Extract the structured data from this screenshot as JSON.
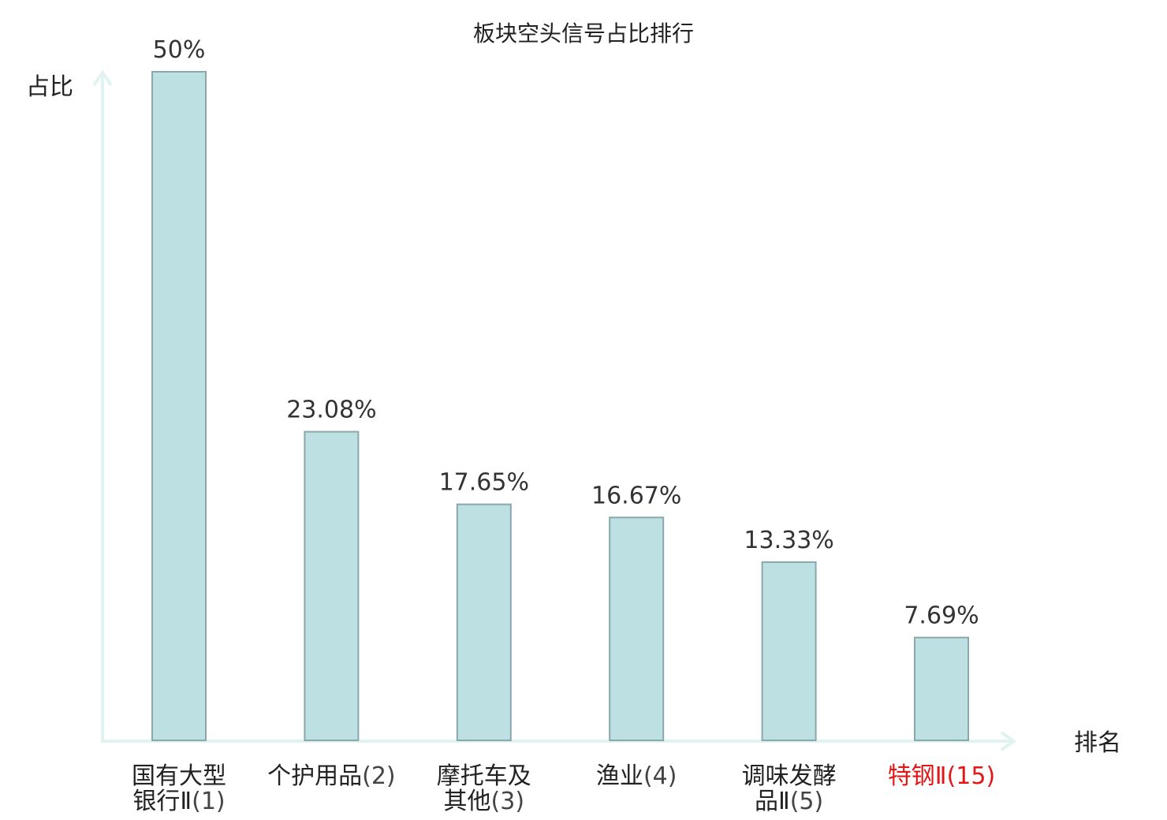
{
  "chart_data": {
    "type": "bar",
    "title": "板块空头信号占比排行",
    "ylabel": "占比",
    "xlabel": "排名",
    "ylim": [
      0,
      52
    ],
    "grid": false,
    "legend": "none",
    "categories": [
      {
        "lines": [
          {
            "main": "国有大型",
            "suffix": ""
          },
          {
            "main": "银行Ⅱ",
            "suffix": "(1)"
          }
        ],
        "highlight": false
      },
      {
        "lines": [
          {
            "main": "个护用品",
            "suffix": "(2)"
          }
        ],
        "highlight": false
      },
      {
        "lines": [
          {
            "main": "摩托车及",
            "suffix": ""
          },
          {
            "main": "其他",
            "suffix": "(3)"
          }
        ],
        "highlight": false
      },
      {
        "lines": [
          {
            "main": "渔业",
            "suffix": "(4)"
          }
        ],
        "highlight": false
      },
      {
        "lines": [
          {
            "main": "调味发酵",
            "suffix": ""
          },
          {
            "main": "品Ⅱ",
            "suffix": "(5)"
          }
        ],
        "highlight": false
      },
      {
        "lines": [
          {
            "main": "特钢Ⅱ",
            "suffix": "(15)"
          }
        ],
        "highlight": true
      }
    ],
    "values": [
      50,
      23.08,
      17.65,
      16.67,
      13.33,
      7.69
    ],
    "value_labels": [
      "50%",
      "23.08%",
      "17.65%",
      "16.67%",
      "13.33%",
      "7.69%"
    ],
    "colors": {
      "bar_fill": "#bde0e3",
      "bar_stroke": "#8aa7ab",
      "axis": "#e0f3f0",
      "highlight": "#e01818"
    }
  }
}
